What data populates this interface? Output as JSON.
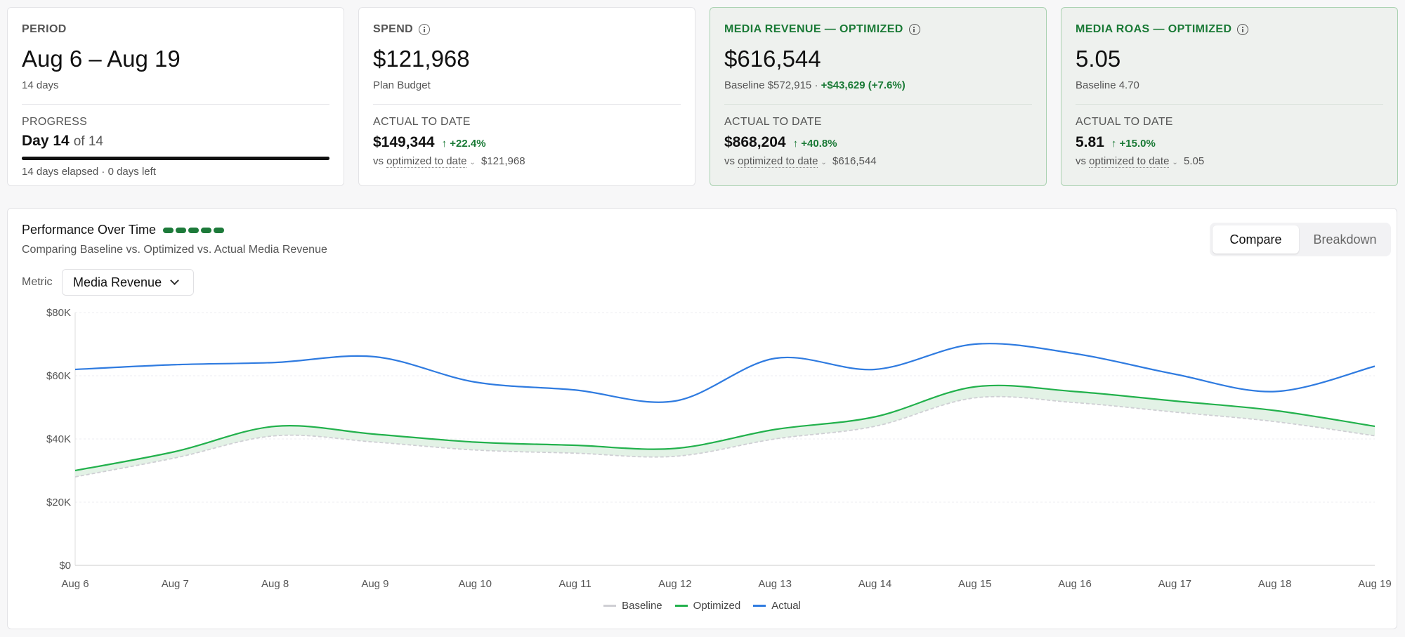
{
  "kpis": {
    "period": {
      "label": "PERIOD",
      "value": "Aug 6 – Aug 19",
      "sub": "14 days",
      "progress_label": "PROGRESS",
      "day": "Day 14",
      "of": "of 14",
      "progress_fraction": 1.0,
      "elapsed": "14 days elapsed · 0 days left"
    },
    "spend": {
      "label": "SPEND",
      "value": "$121,968",
      "sub": "Plan Budget",
      "actual_label": "ACTUAL TO DATE",
      "actual_value": "$149,344",
      "actual_delta": "↑ +22.4%",
      "vs_prefix": "vs",
      "vs_link": "optimized to date",
      "vs_value": "$121,968"
    },
    "media_revenue": {
      "label": "MEDIA REVENUE — OPTIMIZED",
      "value": "$616,544",
      "baseline": "Baseline $572,915 ·",
      "gain": "+$43,629 (+7.6%)",
      "actual_label": "ACTUAL TO DATE",
      "actual_value": "$868,204",
      "actual_delta": "↑ +40.8%",
      "vs_prefix": "vs",
      "vs_link": "optimized to date",
      "vs_value": "$616,544"
    },
    "media_roas": {
      "label": "MEDIA ROAS — OPTIMIZED",
      "value": "5.05",
      "sub": "Baseline 4.70",
      "actual_label": "ACTUAL TO DATE",
      "actual_value": "5.81",
      "actual_delta": "↑ +15.0%",
      "vs_prefix": "vs",
      "vs_link": "optimized to date",
      "vs_value": "5.05"
    }
  },
  "chart_panel": {
    "title": "Performance Over Time",
    "subtitle": "Comparing Baseline vs. Optimized vs. Actual Media Revenue",
    "toggle": [
      "Compare",
      "Breakdown"
    ],
    "active_toggle": "Compare",
    "metric_label": "Metric",
    "metric_value": "Media Revenue"
  },
  "chart_data": {
    "type": "line",
    "x": [
      "Aug 6",
      "Aug 7",
      "Aug 8",
      "Aug 9",
      "Aug 10",
      "Aug 11",
      "Aug 12",
      "Aug 13",
      "Aug 14",
      "Aug 15",
      "Aug 16",
      "Aug 17",
      "Aug 18",
      "Aug 19"
    ],
    "yticks": [
      "$0",
      "$20K",
      "$40K",
      "$60K",
      "$80K"
    ],
    "ylim": [
      0,
      80000
    ],
    "series": [
      {
        "name": "Baseline",
        "color": "#cfcfd4",
        "style": "dashed",
        "values": [
          28000,
          34000,
          41000,
          39000,
          36500,
          35500,
          34500,
          40000,
          44000,
          53000,
          51500,
          48500,
          45500,
          41000
        ]
      },
      {
        "name": "Optimized",
        "color": "#22b14c",
        "style": "solid",
        "values": [
          30000,
          36000,
          44000,
          41500,
          39000,
          38000,
          37000,
          43000,
          47000,
          56500,
          55000,
          52000,
          49000,
          44000
        ]
      },
      {
        "name": "Actual",
        "color": "#2f7be0",
        "style": "solid",
        "values": [
          62000,
          63500,
          64200,
          66000,
          58000,
          55500,
          52000,
          65500,
          62000,
          70000,
          67000,
          60500,
          55000,
          63000
        ]
      }
    ],
    "fill_between": [
      "Baseline",
      "Optimized"
    ],
    "fill_color": "#e3f2e6",
    "grid": "horizontal dashed",
    "legend": "bottom-center"
  }
}
